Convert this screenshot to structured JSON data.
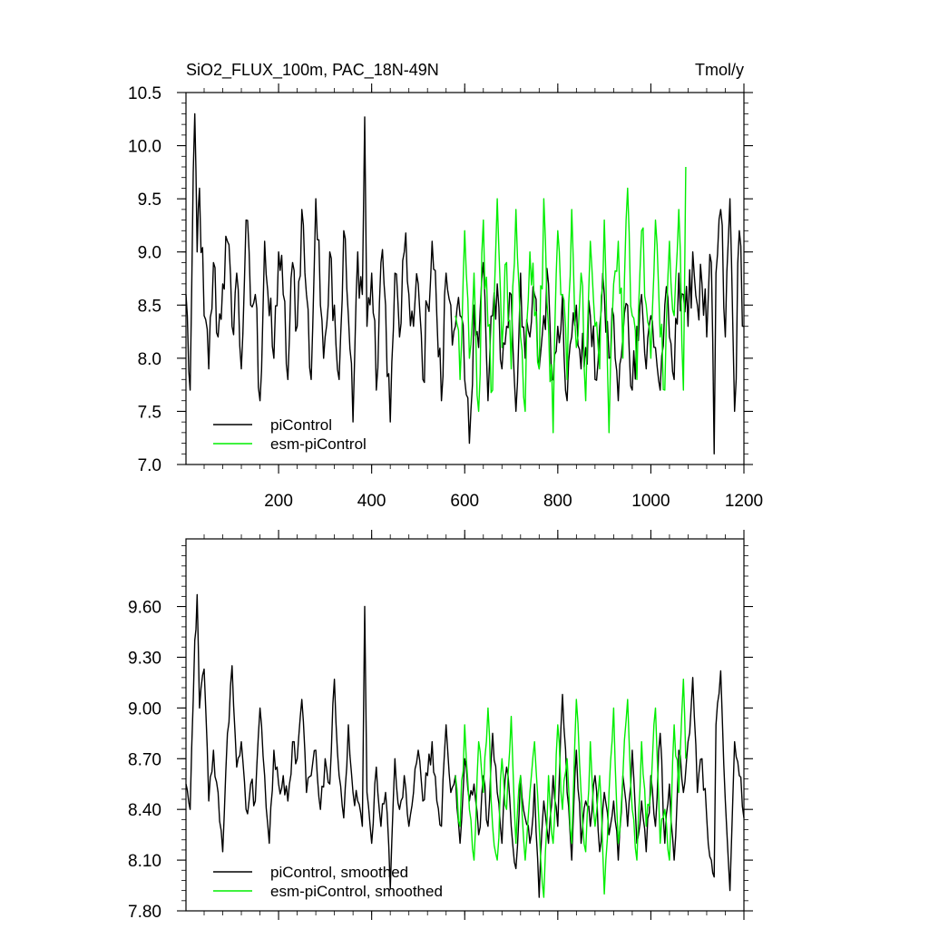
{
  "chart_data": [
    {
      "type": "line",
      "title": "SiO2_FLUX_100m, PAC_18N-49N",
      "units": "Tmol/y",
      "xlim": [
        1,
        1200
      ],
      "ylim": [
        7.0,
        10.5
      ],
      "x_ticks": [
        200,
        400,
        600,
        800,
        1000,
        1200
      ],
      "x_tick_labels": [
        "200",
        "400",
        "600",
        "800",
        "1000",
        "1200"
      ],
      "y_ticks": [
        7.0,
        7.5,
        8.0,
        8.5,
        9.0,
        9.5,
        10.0,
        10.5
      ],
      "y_tick_labels": [
        "7.0",
        "7.5",
        "8.0",
        "8.5",
        "9.0",
        "9.5",
        "10.0",
        "10.5"
      ],
      "grid": false,
      "legend": "bottom-left",
      "series": [
        {
          "name": "piControl",
          "color": "#000000",
          "x": [
            1,
            10,
            20,
            25,
            30,
            40,
            50,
            60,
            70,
            80,
            90,
            100,
            110,
            120,
            130,
            140,
            150,
            160,
            170,
            180,
            190,
            200,
            210,
            220,
            230,
            240,
            250,
            260,
            270,
            280,
            290,
            300,
            310,
            320,
            330,
            340,
            350,
            360,
            370,
            380,
            385,
            390,
            400,
            410,
            420,
            430,
            440,
            450,
            460,
            470,
            480,
            490,
            500,
            510,
            520,
            530,
            540,
            550,
            560,
            570,
            580,
            590,
            600,
            610,
            620,
            630,
            640,
            650,
            660,
            670,
            680,
            690,
            700,
            710,
            720,
            730,
            740,
            750,
            760,
            770,
            780,
            790,
            800,
            810,
            820,
            830,
            840,
            850,
            860,
            870,
            880,
            890,
            900,
            910,
            920,
            930,
            940,
            950,
            960,
            970,
            980,
            990,
            1000,
            1010,
            1020,
            1030,
            1040,
            1050,
            1060,
            1070,
            1080,
            1090,
            1100,
            1110,
            1120,
            1130,
            1136,
            1140,
            1150,
            1160,
            1170,
            1180,
            1190,
            1200
          ],
          "values": [
            8.6,
            7.7,
            10.3,
            9.0,
            9.6,
            8.4,
            7.9,
            8.9,
            8.2,
            8.7,
            9.1,
            8.3,
            8.8,
            7.9,
            9.3,
            8.5,
            8.6,
            7.6,
            9.1,
            8.4,
            8.0,
            9.0,
            8.6,
            7.8,
            8.9,
            8.3,
            9.4,
            8.6,
            7.8,
            9.5,
            8.5,
            8.2,
            9.0,
            8.5,
            7.8,
            9.2,
            8.4,
            7.4,
            9.0,
            8.6,
            10.27,
            8.3,
            8.8,
            7.7,
            8.9,
            8.5,
            7.4,
            8.8,
            8.2,
            9.0,
            8.6,
            8.3,
            8.7,
            7.8,
            8.5,
            9.1,
            8.4,
            7.6,
            8.8,
            8.5,
            8.3,
            8.4,
            7.8,
            7.2,
            8.5,
            8.1,
            8.9,
            7.6,
            8.4,
            8.7,
            7.9,
            8.3,
            8.6,
            7.5,
            8.8,
            8.0,
            8.2,
            8.6,
            7.9,
            8.4,
            8.7,
            7.8,
            8.3,
            8.6,
            7.6,
            8.2,
            8.5,
            7.9,
            8.1,
            8.4,
            7.8,
            8.3,
            8.6,
            8.0,
            8.4,
            7.6,
            8.2,
            8.5,
            7.7,
            8.3,
            8.6,
            7.9,
            8.4,
            8.1,
            7.7,
            8.5,
            8.2,
            7.8,
            8.8,
            8.6,
            8.3,
            9.0,
            8.5,
            8.7,
            8.2,
            8.9,
            7.1,
            8.8,
            9.4,
            8.2,
            9.5,
            7.5,
            9.2,
            8.3
          ]
        },
        {
          "name": "esm-piControl",
          "color": "#00ee00",
          "x": [
            580,
            590,
            600,
            610,
            620,
            630,
            640,
            650,
            660,
            670,
            680,
            690,
            700,
            710,
            720,
            730,
            740,
            750,
            760,
            770,
            780,
            790,
            800,
            810,
            820,
            830,
            840,
            850,
            860,
            870,
            880,
            890,
            900,
            910,
            920,
            930,
            940,
            950,
            960,
            970,
            980,
            990,
            1000,
            1010,
            1020,
            1030,
            1040,
            1050,
            1060,
            1070,
            1075
          ],
          "values": [
            8.4,
            7.8,
            9.2,
            8.0,
            8.8,
            7.5,
            9.3,
            8.3,
            7.7,
            9.5,
            8.1,
            8.9,
            7.9,
            9.4,
            8.2,
            7.5,
            9.0,
            8.4,
            7.9,
            9.5,
            8.3,
            7.3,
            9.2,
            8.6,
            7.8,
            9.4,
            8.1,
            8.8,
            7.6,
            9.1,
            8.3,
            7.9,
            9.3,
            7.3,
            8.7,
            9.1,
            8.0,
            9.6,
            8.4,
            7.8,
            9.2,
            8.5,
            8.0,
            9.3,
            8.2,
            7.7,
            9.1,
            8.4,
            9.4,
            7.7,
            9.8
          ]
        }
      ]
    },
    {
      "type": "line",
      "title": "",
      "xlim": [
        1,
        1200
      ],
      "ylim": [
        7.8,
        10.0
      ],
      "y_ticks": [
        7.8,
        8.1,
        8.4,
        8.7,
        9.0,
        9.3,
        9.6
      ],
      "y_tick_labels": [
        "7.80",
        "8.10",
        "8.40",
        "8.70",
        "9.00",
        "9.30",
        "9.60"
      ],
      "grid": false,
      "legend": "bottom-left",
      "series": [
        {
          "name": "piControl, smoothed",
          "color": "#000000",
          "x": [
            1,
            10,
            20,
            25,
            30,
            40,
            50,
            60,
            70,
            80,
            90,
            100,
            110,
            120,
            130,
            140,
            150,
            160,
            170,
            180,
            190,
            200,
            210,
            220,
            230,
            240,
            250,
            260,
            270,
            280,
            290,
            300,
            310,
            320,
            330,
            340,
            350,
            360,
            370,
            380,
            385,
            390,
            400,
            410,
            420,
            430,
            440,
            450,
            460,
            470,
            480,
            490,
            500,
            510,
            520,
            530,
            540,
            550,
            560,
            570,
            580,
            590,
            600,
            610,
            620,
            630,
            640,
            650,
            660,
            670,
            680,
            690,
            700,
            710,
            720,
            730,
            740,
            750,
            760,
            770,
            780,
            790,
            800,
            810,
            820,
            830,
            840,
            850,
            860,
            870,
            880,
            890,
            900,
            910,
            920,
            930,
            940,
            950,
            960,
            970,
            980,
            990,
            1000,
            1010,
            1020,
            1030,
            1040,
            1050,
            1060,
            1070,
            1080,
            1090,
            1100,
            1110,
            1120,
            1130,
            1136,
            1140,
            1150,
            1160,
            1170,
            1180,
            1190,
            1200
          ],
          "values": [
            8.55,
            8.4,
            9.4,
            9.67,
            9.0,
            9.23,
            8.45,
            8.75,
            8.5,
            8.15,
            8.85,
            9.25,
            8.65,
            8.8,
            8.4,
            8.55,
            8.45,
            9.0,
            8.6,
            8.2,
            8.75,
            8.55,
            8.6,
            8.45,
            8.8,
            8.7,
            9.05,
            8.5,
            8.6,
            8.75,
            8.4,
            8.7,
            8.55,
            9.17,
            8.6,
            8.35,
            8.9,
            8.5,
            8.45,
            8.3,
            9.6,
            8.5,
            8.2,
            8.65,
            8.3,
            8.5,
            7.93,
            8.7,
            8.4,
            8.6,
            8.3,
            8.5,
            8.75,
            8.45,
            8.6,
            8.8,
            8.45,
            8.3,
            8.9,
            8.5,
            8.6,
            8.2,
            8.7,
            8.45,
            8.55,
            8.25,
            8.6,
            8.3,
            8.85,
            8.5,
            8.2,
            8.65,
            8.3,
            8.05,
            8.6,
            8.35,
            8.2,
            8.55,
            7.88,
            8.45,
            8.2,
            8.6,
            8.3,
            9.08,
            8.5,
            8.1,
            8.75,
            8.2,
            8.45,
            8.3,
            8.6,
            8.15,
            8.5,
            8.25,
            8.45,
            8.1,
            8.6,
            8.3,
            8.75,
            8.2,
            8.45,
            8.15,
            8.6,
            8.3,
            8.85,
            8.2,
            8.55,
            8.1,
            8.75,
            8.5,
            8.8,
            9.18,
            8.5,
            8.7,
            8.35,
            8.1,
            8.0,
            8.9,
            9.22,
            8.45,
            7.92,
            8.8,
            8.6,
            8.35
          ]
        },
        {
          "name": "esm-piControl, smoothed",
          "color": "#00ee00",
          "x": [
            580,
            590,
            600,
            610,
            620,
            630,
            640,
            650,
            660,
            670,
            680,
            690,
            700,
            710,
            720,
            730,
            740,
            750,
            760,
            770,
            780,
            790,
            800,
            810,
            820,
            830,
            840,
            850,
            860,
            870,
            880,
            890,
            900,
            910,
            920,
            930,
            940,
            950,
            960,
            970,
            980,
            990,
            1000,
            1010,
            1020,
            1030,
            1040,
            1050,
            1060,
            1070,
            1075
          ],
          "values": [
            8.6,
            8.3,
            8.9,
            8.4,
            8.1,
            8.8,
            8.5,
            9.0,
            8.3,
            8.1,
            8.7,
            8.4,
            8.95,
            8.2,
            8.6,
            8.1,
            8.5,
            8.8,
            8.3,
            7.88,
            8.6,
            8.2,
            8.9,
            8.4,
            8.7,
            8.2,
            9.05,
            8.5,
            8.15,
            8.8,
            8.3,
            8.6,
            7.9,
            8.5,
            9.0,
            8.2,
            8.6,
            9.05,
            8.4,
            8.1,
            8.8,
            8.3,
            8.5,
            9.0,
            8.2,
            8.4,
            8.1,
            8.9,
            8.5,
            9.17,
            8.7
          ]
        }
      ]
    }
  ]
}
